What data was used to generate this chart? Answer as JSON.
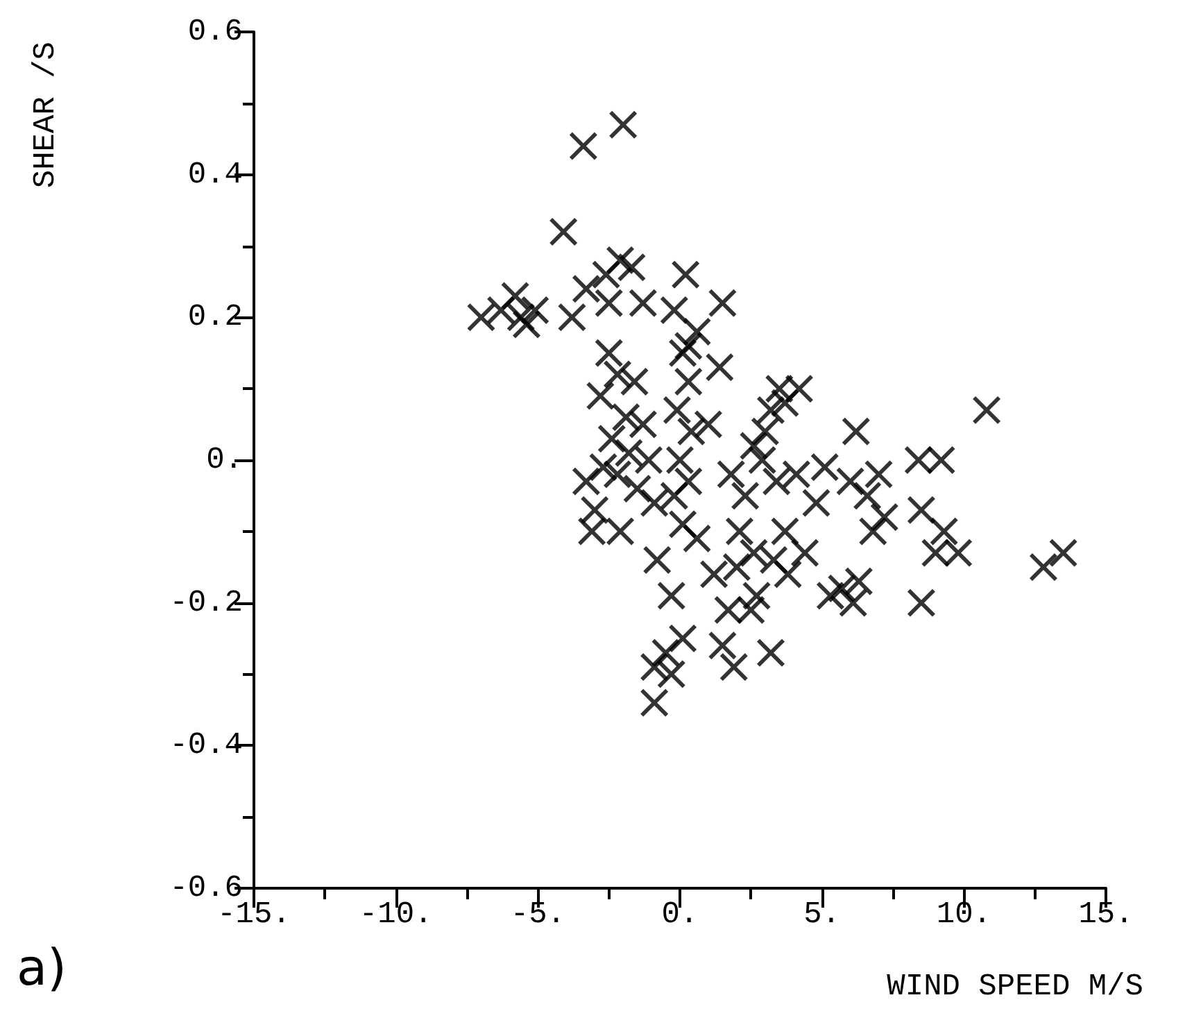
{
  "chart_data": {
    "type": "scatter",
    "xlabel": "WIND SPEED M/S",
    "ylabel": "SHEAR /S",
    "annotations": [
      "a)"
    ],
    "marker": "cross",
    "grid": false,
    "xlim": [
      -15,
      15
    ],
    "ylim": [
      -0.6,
      0.6
    ],
    "xticks": [
      {
        "value": -15,
        "label": "-15."
      },
      {
        "value": -10,
        "label": "-10."
      },
      {
        "value": -5,
        "label": "-5."
      },
      {
        "value": 0,
        "label": "0."
      },
      {
        "value": 5,
        "label": "5."
      },
      {
        "value": 10,
        "label": "10."
      },
      {
        "value": 15,
        "label": "15."
      }
    ],
    "yticks": [
      {
        "value": -0.6,
        "label": "-0.6"
      },
      {
        "value": -0.4,
        "label": "-0.4"
      },
      {
        "value": -0.2,
        "label": "-0.2"
      },
      {
        "value": 0,
        "label": "0."
      },
      {
        "value": 0.2,
        "label": "0.2"
      },
      {
        "value": 0.4,
        "label": "0.4"
      },
      {
        "value": 0.6,
        "label": "0.6"
      }
    ],
    "series": [
      {
        "color": "#000000",
        "x": [
          -2.0,
          -3.4,
          -4.1,
          -7.0,
          -6.3,
          -5.8,
          -5.4,
          -5.1,
          -5.6,
          -3.8,
          -3.3,
          -2.6,
          -2.1,
          -1.7,
          -1.3,
          -2.5,
          0.2,
          1.5,
          -0.2,
          0.6,
          0.3,
          -2.5,
          -2.2,
          -1.6,
          -2.8,
          -1.9,
          -1.3,
          -2.4,
          -1.8,
          -1.1,
          -2.7,
          -3.3,
          -3.0,
          -2.2,
          -1.5,
          -0.9,
          -3.1,
          -2.1,
          0.1,
          0.3,
          -0.1,
          0.4,
          0.0,
          0.3,
          -0.2,
          0.1,
          0.6,
          1.4,
          1.0,
          -0.8,
          -0.3,
          0.1,
          -0.5,
          -0.9,
          -0.3,
          -0.9,
          1.5,
          1.9,
          3.2,
          3.5,
          4.2,
          3.7,
          2.6,
          3.0,
          1.8,
          2.3,
          2.9,
          3.4,
          4.1,
          4.8,
          5.1,
          6.0,
          6.2,
          6.6,
          7.0,
          6.8,
          7.2,
          2.1,
          2.6,
          3.3,
          2.0,
          1.2,
          3.7,
          4.4,
          3.8,
          2.7,
          2.5,
          1.7,
          3.2,
          5.3,
          5.7,
          6.1,
          6.3,
          8.4,
          9.2,
          8.5,
          9.0,
          9.3,
          9.8,
          8.5,
          10.8,
          12.8,
          13.5
        ],
        "values": [
          0.47,
          0.44,
          0.32,
          0.2,
          0.21,
          0.23,
          0.19,
          0.21,
          0.2,
          0.2,
          0.24,
          0.26,
          0.28,
          0.27,
          0.22,
          0.22,
          0.26,
          0.22,
          0.21,
          0.18,
          0.16,
          0.15,
          0.12,
          0.11,
          0.09,
          0.06,
          0.05,
          0.03,
          0.01,
          0.0,
          -0.01,
          -0.03,
          -0.07,
          -0.02,
          -0.04,
          -0.06,
          -0.1,
          -0.1,
          0.15,
          0.11,
          0.07,
          0.04,
          0.0,
          -0.03,
          -0.05,
          -0.09,
          -0.11,
          0.13,
          0.05,
          -0.14,
          -0.19,
          -0.25,
          -0.27,
          -0.29,
          -0.3,
          -0.34,
          -0.26,
          -0.29,
          0.07,
          0.1,
          0.1,
          0.08,
          0.02,
          0.04,
          -0.02,
          -0.05,
          0.0,
          -0.03,
          -0.02,
          -0.06,
          -0.01,
          -0.03,
          0.04,
          -0.05,
          -0.02,
          -0.1,
          -0.08,
          -0.1,
          -0.13,
          -0.14,
          -0.15,
          -0.16,
          -0.1,
          -0.13,
          -0.16,
          -0.19,
          -0.21,
          -0.21,
          -0.27,
          -0.19,
          -0.18,
          -0.2,
          -0.17,
          0.0,
          0.0,
          -0.07,
          -0.13,
          -0.1,
          -0.13,
          -0.2,
          0.07,
          -0.15,
          -0.13
        ]
      }
    ]
  }
}
